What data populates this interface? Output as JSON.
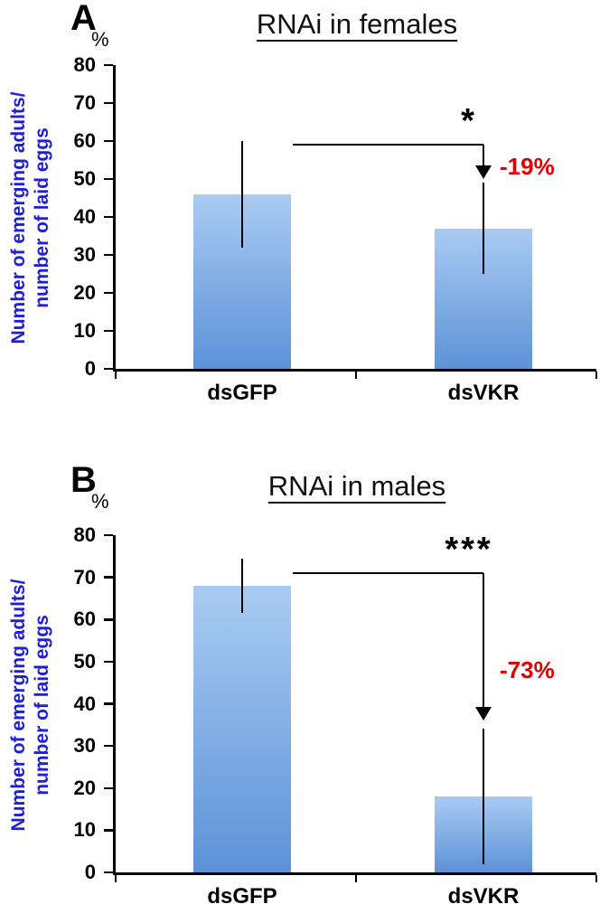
{
  "colors": {
    "axis_label_blue": "#1f1fd6",
    "change_red": "#e00000",
    "bar_top": "#a9cbf2",
    "bar_bottom": "#5d92d8",
    "axis_black": "#000000"
  },
  "chart_data": [
    {
      "type": "bar",
      "panel": "A",
      "title": "RNAi in females",
      "unit": "%",
      "ylabel_line1": "Number of emerging adults/",
      "ylabel_line2": "number of laid eggs",
      "ylim": [
        0,
        80
      ],
      "yticks": [
        0,
        10,
        20,
        30,
        40,
        50,
        60,
        70,
        80
      ],
      "categories": [
        "dsGFP",
        "dsVKR"
      ],
      "values": [
        46,
        37
      ],
      "errors": [
        14,
        12
      ],
      "grid": false,
      "legend": "none",
      "annotation": {
        "stars": "*",
        "change": "-19%",
        "line_from_value": 59,
        "arrow_tip_value": 50
      }
    },
    {
      "type": "bar",
      "panel": "B",
      "title": "RNAi in males",
      "unit": "%",
      "ylabel_line1": "Number of emerging adults/",
      "ylabel_line2": "number of laid eggs",
      "ylim": [
        0,
        80
      ],
      "yticks": [
        0,
        10,
        20,
        30,
        40,
        50,
        60,
        70,
        80
      ],
      "categories": [
        "dsGFP",
        "dsVKR"
      ],
      "values": [
        68,
        18
      ],
      "errors": [
        6.5,
        16
      ],
      "grid": false,
      "legend": "none",
      "annotation": {
        "stars": "***",
        "change": "-73%",
        "line_from_value": 71,
        "arrow_tip_value": 36
      }
    }
  ]
}
